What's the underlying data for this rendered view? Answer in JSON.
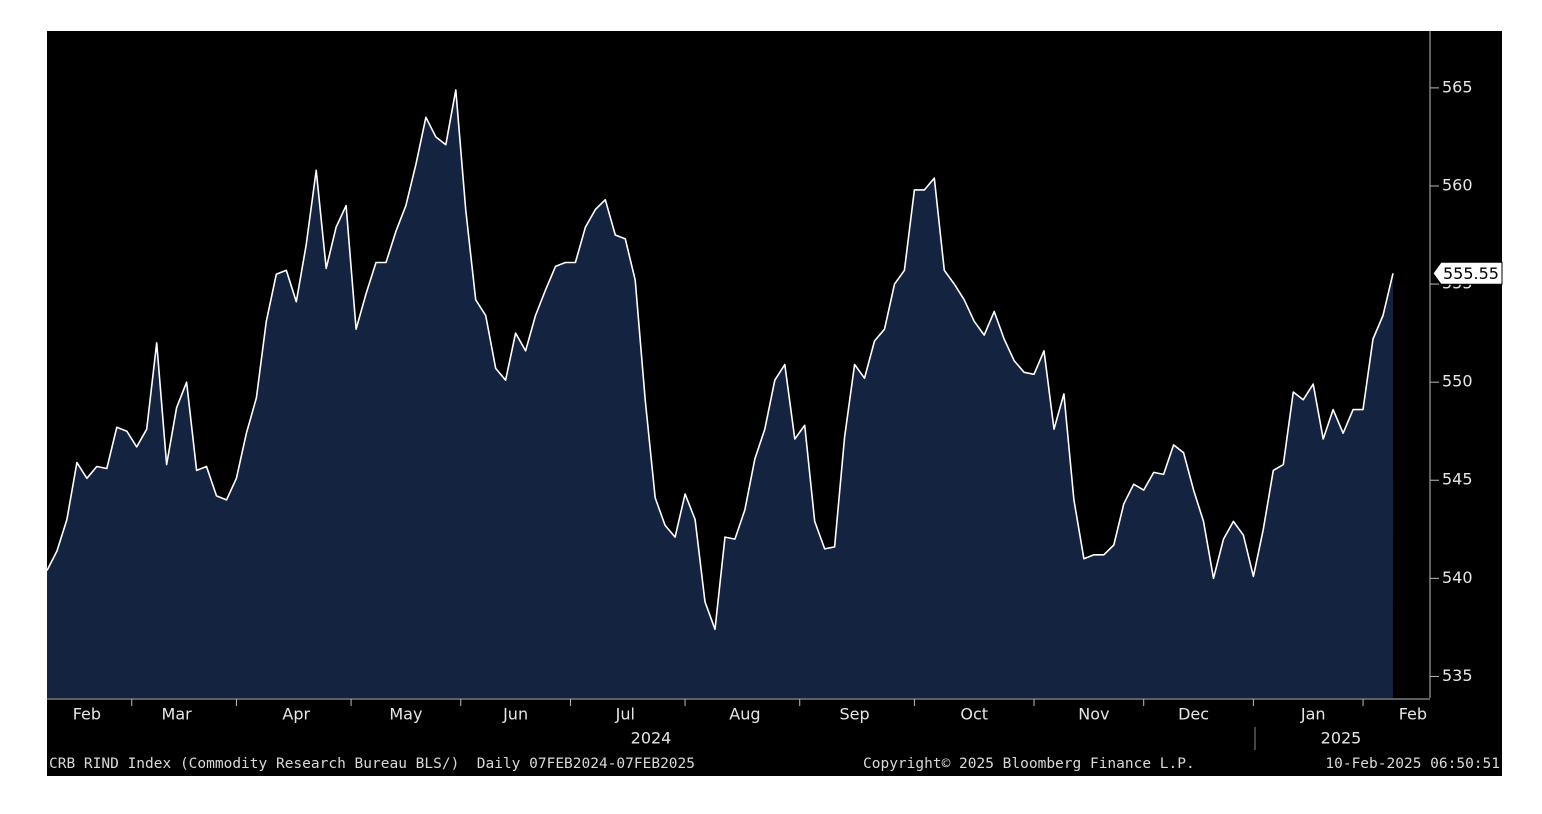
{
  "chart_data": {
    "type": "line",
    "color": "#ffffff",
    "area_color": "#14233f",
    "categories": [
      null,
      null,
      null,
      null,
      "Feb",
      null,
      null,
      null,
      null,
      null,
      null,
      null,
      null,
      "Mar",
      null,
      null,
      null,
      null,
      null,
      null,
      null,
      null,
      null,
      null,
      null,
      "Apr",
      null,
      null,
      null,
      null,
      null,
      null,
      null,
      null,
      null,
      null,
      "May",
      null,
      null,
      null,
      null,
      null,
      null,
      null,
      null,
      null,
      null,
      "Jun",
      null,
      null,
      null,
      null,
      null,
      null,
      null,
      null,
      null,
      null,
      "Jul",
      null,
      null,
      null,
      null,
      null,
      null,
      null,
      null,
      null,
      null,
      null,
      "Aug",
      null,
      null,
      null,
      null,
      null,
      null,
      null,
      null,
      null,
      null,
      "Sep",
      null,
      null,
      null,
      null,
      null,
      null,
      null,
      null,
      null,
      null,
      null,
      "Oct",
      null,
      null,
      null,
      null,
      null,
      null,
      null,
      null,
      null,
      null,
      null,
      "Nov",
      null,
      null,
      null,
      null,
      null,
      null,
      null,
      null,
      null,
      "Dec",
      null,
      null,
      null,
      null,
      null,
      null,
      null,
      null,
      null,
      null,
      null,
      "Jan",
      null,
      null,
      null,
      null,
      null,
      null,
      null,
      null,
      null,
      "Feb"
    ],
    "values": [
      540.4,
      541.4,
      543.0,
      545.9,
      545.1,
      545.7,
      545.6,
      547.7,
      547.5,
      546.7,
      547.6,
      552.0,
      545.8,
      548.7,
      550.0,
      545.5,
      545.7,
      544.2,
      544.0,
      545.1,
      547.4,
      549.2,
      553.1,
      555.5,
      555.7,
      554.1,
      557.0,
      560.8,
      555.8,
      557.9,
      559.0,
      552.7,
      554.5,
      556.1,
      556.1,
      557.7,
      559.0,
      561.1,
      563.5,
      562.5,
      562.1,
      564.9,
      558.8,
      554.2,
      553.4,
      550.7,
      550.1,
      552.5,
      551.6,
      553.4,
      554.7,
      555.9,
      556.1,
      556.1,
      557.9,
      558.8,
      559.3,
      557.5,
      557.3,
      555.2,
      549.1,
      544.1,
      542.7,
      542.1,
      544.3,
      543.0,
      538.8,
      537.4,
      542.1,
      542.0,
      543.5,
      546.1,
      547.6,
      550.1,
      550.9,
      547.1,
      547.8,
      542.9,
      541.5,
      541.6,
      547.2,
      550.9,
      550.2,
      552.1,
      552.7,
      555.0,
      555.7,
      559.8,
      559.8,
      560.4,
      555.7,
      555.0,
      554.2,
      553.1,
      552.4,
      553.6,
      552.2,
      551.1,
      550.5,
      550.4,
      551.6,
      547.6,
      549.4,
      544.0,
      541.0,
      541.2,
      541.2,
      541.7,
      543.8,
      544.8,
      544.5,
      545.4,
      545.3,
      546.8,
      546.4,
      544.5,
      542.9,
      540.0,
      542.0,
      542.9,
      542.2,
      540.1,
      542.5,
      545.5,
      545.8,
      549.5,
      549.1,
      549.9,
      547.1,
      548.6,
      547.4,
      548.6,
      548.6,
      552.2,
      553.4,
      555.55,
      null,
      null
    ],
    "ylim": [
      533.9,
      567.9
    ],
    "yticks": [
      535,
      540,
      545,
      550,
      555,
      560,
      565
    ],
    "year_labels": [
      "2024",
      "2025"
    ],
    "source_label": "CRB RIND Index (Commodity Research Bureau BLS/)  Daily 07FEB2024-07FEB2025",
    "copyright": "Copyright© 2025 Bloomberg Finance L.P.",
    "timestamp": "10-Feb-2025 06:50:51"
  }
}
